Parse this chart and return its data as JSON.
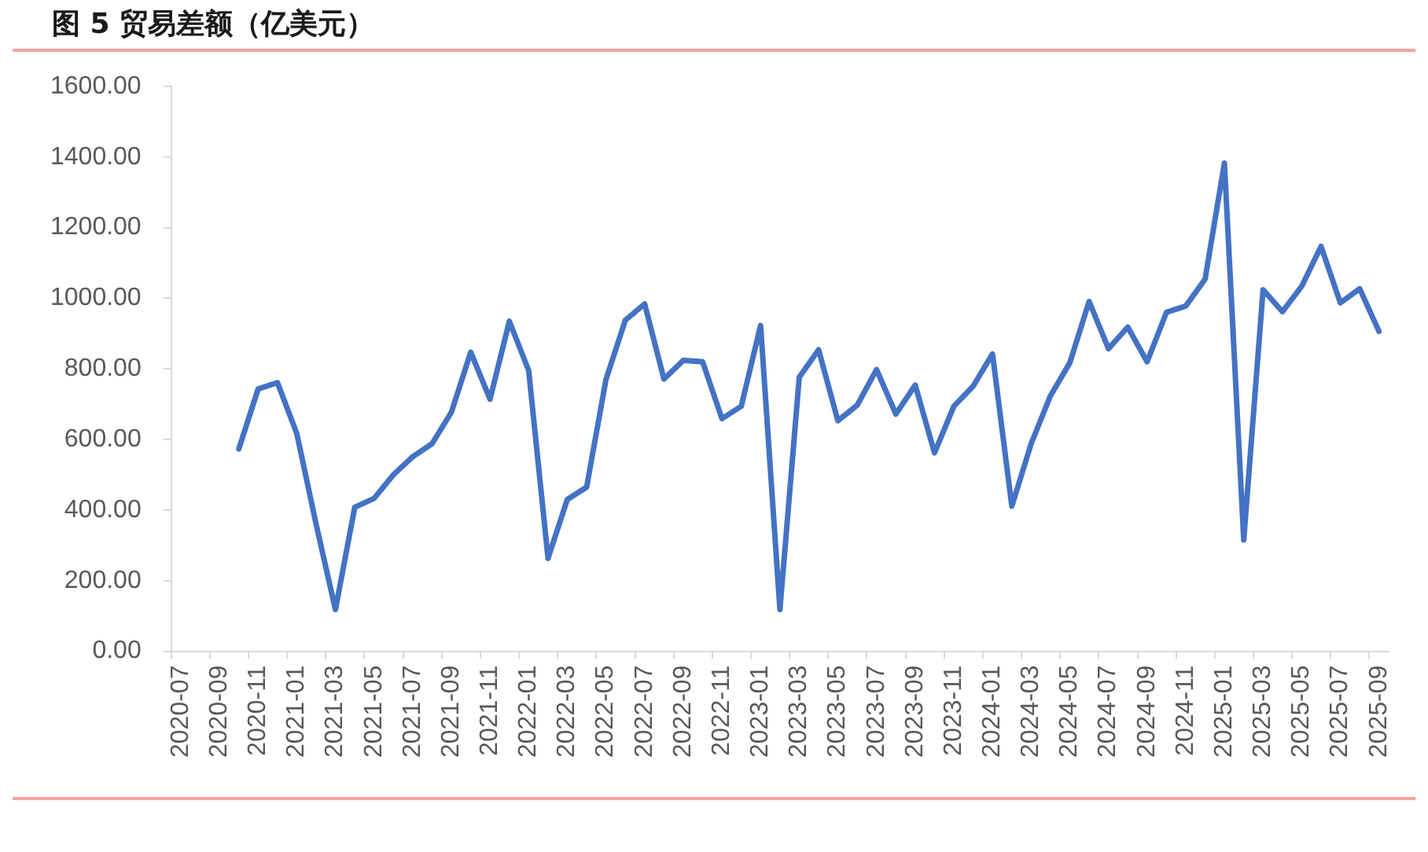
{
  "chart_data": {
    "type": "line",
    "title": "图 5 贸易差额（亿美元）",
    "categories": [
      "2020-07",
      null,
      "2020-09",
      null,
      "2020-11",
      null,
      "2021-01",
      null,
      "2021-03",
      null,
      "2021-05",
      null,
      "2021-07",
      null,
      "2021-09",
      null,
      "2021-11",
      null,
      "2022-01",
      null,
      "2022-03",
      null,
      "2022-05",
      null,
      "2022-07",
      null,
      "2022-09",
      null,
      "2022-11",
      null,
      "2023-01",
      null,
      "2023-03",
      null,
      "2023-05",
      null,
      "2023-07",
      null,
      "2023-09",
      null,
      "2023-11",
      null,
      "2024-01",
      null,
      "2024-03",
      null,
      "2024-05",
      null,
      "2024-07",
      null,
      "2024-09",
      null,
      "2024-11",
      null,
      "2025-01",
      null,
      "2025-03",
      null,
      "2025-05",
      null,
      "2025-07",
      null,
      "2025-09"
    ],
    "values": [
      null,
      null,
      null,
      573,
      743,
      761,
      617,
      360,
      118,
      408,
      433,
      500,
      551,
      588,
      677,
      847,
      714,
      935,
      795,
      263,
      430,
      465,
      770,
      938,
      984,
      771,
      824,
      820,
      659,
      694,
      923,
      118,
      776,
      854,
      653,
      697,
      798,
      672,
      754,
      562,
      694,
      751,
      842,
      411,
      588,
      724,
      817,
      991,
      857,
      918,
      820,
      960,
      978,
      1054,
      1383,
      315,
      1024,
      962,
      1034,
      1147,
      987,
      1027,
      906
    ],
    "color": "#4472c4",
    "ylim": [
      0,
      1600
    ],
    "yticks": [
      {
        "value": 0,
        "label": "0.00"
      },
      {
        "value": 200,
        "label": "200.00"
      },
      {
        "value": 400,
        "label": "400.00"
      },
      {
        "value": 600,
        "label": "600.00"
      },
      {
        "value": 800,
        "label": "800.00"
      },
      {
        "value": 1000,
        "label": "1000.00"
      },
      {
        "value": 1200,
        "label": "1200.00"
      },
      {
        "value": 1400,
        "label": "1400.00"
      },
      {
        "value": 1600,
        "label": "1600.00"
      }
    ],
    "grid": false,
    "legend": false,
    "marker": "none",
    "line_style": "solid"
  }
}
